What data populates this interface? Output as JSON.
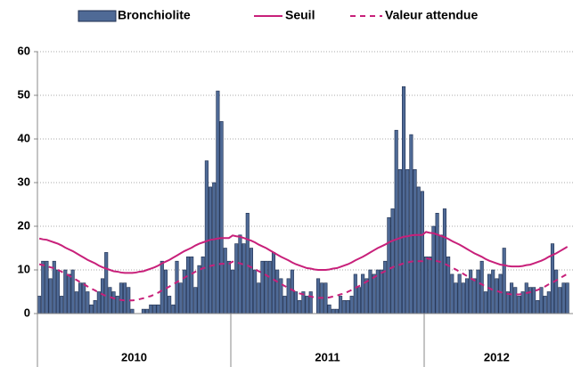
{
  "chart_data": {
    "type": "bar",
    "legend": "top",
    "grid": true,
    "ylim": [
      0,
      60
    ],
    "yticks": [
      0,
      10,
      20,
      30,
      40,
      50,
      60
    ],
    "year_labels": [
      "2010",
      "2011",
      "2012"
    ],
    "categories": [
      null,
      null,
      null,
      null,
      null,
      null,
      null,
      null,
      null,
      null,
      null,
      null,
      null,
      null,
      null,
      null,
      null,
      null,
      null,
      null,
      null,
      null,
      null,
      null,
      null,
      null,
      null,
      null,
      null,
      null,
      null,
      null,
      null,
      null,
      null,
      null,
      null,
      null,
      null,
      null,
      null,
      null,
      null,
      null,
      null,
      null,
      null,
      null,
      null,
      null,
      null,
      null,
      null,
      null,
      null,
      null,
      null,
      null,
      null,
      null,
      null,
      null,
      null,
      null,
      null,
      null,
      null,
      null,
      null,
      null,
      null,
      null,
      null,
      null,
      null,
      null,
      null,
      null,
      null,
      null,
      null,
      null,
      null,
      null,
      null,
      null,
      null,
      null,
      null,
      null,
      null,
      null,
      null,
      null,
      null,
      null,
      null,
      null,
      null,
      null,
      null,
      null,
      null,
      null,
      null,
      null,
      null,
      null,
      null,
      null,
      null,
      null,
      null,
      null,
      null,
      null,
      null,
      null,
      null,
      null,
      null,
      null,
      null,
      null,
      null,
      null,
      null,
      null,
      null,
      null,
      null,
      null,
      null,
      null,
      null,
      null,
      null,
      null,
      null,
      null,
      null,
      null,
      null
    ],
    "series": [
      {
        "name": "Bronchiolite",
        "type": "bar",
        "color": "#4f6a96",
        "values": [
          4,
          12,
          12,
          8,
          12,
          10,
          4,
          10,
          9,
          10,
          5,
          7,
          7,
          5,
          2,
          3,
          5,
          8,
          14,
          6,
          5,
          4,
          7,
          7,
          6,
          1,
          0,
          0,
          1,
          1,
          2,
          2,
          2,
          12,
          10,
          4,
          2,
          12,
          7,
          10,
          13,
          13,
          6,
          11,
          13,
          35,
          29,
          30,
          51,
          44,
          15,
          12,
          10,
          16,
          18,
          16,
          23,
          15,
          10,
          7,
          12,
          12,
          12,
          14,
          10,
          8,
          4,
          8,
          10,
          5,
          3,
          5,
          4,
          5,
          0,
          8,
          7,
          7,
          2,
          1,
          1,
          4,
          3,
          3,
          4,
          9,
          6,
          9,
          8,
          10,
          9,
          10,
          10,
          12,
          22,
          24,
          42,
          33,
          52,
          33,
          41,
          33,
          29,
          28,
          13,
          13,
          20,
          23,
          18,
          24,
          13,
          9,
          7,
          9,
          7,
          8,
          10,
          8,
          10,
          12,
          5,
          9,
          10,
          8,
          9,
          15,
          5,
          7,
          6,
          4,
          5,
          7,
          6,
          6,
          3,
          6,
          4,
          5,
          16,
          10,
          6,
          7,
          7
        ]
      },
      {
        "name": "Seuil",
        "type": "line",
        "color": "#c8207a",
        "dash": false,
        "values": [
          17.2,
          17.0,
          16.9,
          16.6,
          16.3,
          16.0,
          15.6,
          15.1,
          14.7,
          14.3,
          13.8,
          13.3,
          12.8,
          12.3,
          11.9,
          11.5,
          11.0,
          10.6,
          10.3,
          10.0,
          9.7,
          9.6,
          9.4,
          9.3,
          9.3,
          9.3,
          9.4,
          9.6,
          9.7,
          10.0,
          10.3,
          10.6,
          11.0,
          11.5,
          11.9,
          12.3,
          12.8,
          13.3,
          13.8,
          14.3,
          14.7,
          15.1,
          15.6,
          16.0,
          16.3,
          16.6,
          16.9,
          17.0,
          17.2,
          17.3,
          17.3,
          17.3,
          17.9,
          17.7,
          17.6,
          17.3,
          17.0,
          16.7,
          16.3,
          15.8,
          15.4,
          15.0,
          14.5,
          14.0,
          13.5,
          13.0,
          12.6,
          12.2,
          11.7,
          11.3,
          11.0,
          10.7,
          10.4,
          10.3,
          10.1,
          10.0,
          10.0,
          10.0,
          10.1,
          10.3,
          10.4,
          10.7,
          11.0,
          11.3,
          11.7,
          12.2,
          12.6,
          13.0,
          13.5,
          14.0,
          14.5,
          15.0,
          15.4,
          15.8,
          16.3,
          16.7,
          17.0,
          17.3,
          17.6,
          17.7,
          17.9,
          18.0,
          18.0,
          18.0,
          18.7,
          18.5,
          18.4,
          18.1,
          17.8,
          17.5,
          17.1,
          16.6,
          16.2,
          15.8,
          15.3,
          14.8,
          14.3,
          13.8,
          13.4,
          13.0,
          12.5,
          12.1,
          11.8,
          11.5,
          11.2,
          11.1,
          10.9,
          10.8,
          10.8,
          10.8,
          10.9,
          11.1,
          11.2,
          11.5,
          11.8,
          12.1,
          12.5,
          13.0,
          13.4,
          13.8,
          14.3,
          14.8,
          15.3
        ]
      },
      {
        "name": "Valeur attendue",
        "type": "line",
        "color": "#c8207a",
        "dash": true,
        "values": [
          11.3,
          11.1,
          10.9,
          10.6,
          10.4,
          10.0,
          9.6,
          9.1,
          8.7,
          8.2,
          7.7,
          7.2,
          6.7,
          6.2,
          5.7,
          5.3,
          4.8,
          4.4,
          4.0,
          3.8,
          3.5,
          3.3,
          3.1,
          3.0,
          3.0,
          3.0,
          3.1,
          3.3,
          3.5,
          3.8,
          4.0,
          4.4,
          4.8,
          5.3,
          5.7,
          6.2,
          6.7,
          7.2,
          7.7,
          8.2,
          8.7,
          9.1,
          9.6,
          10.0,
          10.4,
          10.6,
          10.9,
          11.1,
          11.3,
          11.4,
          11.4,
          11.4,
          11.9,
          11.7,
          11.5,
          11.2,
          11.0,
          10.6,
          10.2,
          9.7,
          9.3,
          8.8,
          8.3,
          7.8,
          7.3,
          6.8,
          6.3,
          5.9,
          5.4,
          5.0,
          4.6,
          4.4,
          4.1,
          3.9,
          3.7,
          3.6,
          3.6,
          3.6,
          3.7,
          3.9,
          4.1,
          4.4,
          4.6,
          5.0,
          5.4,
          5.9,
          6.3,
          6.8,
          7.3,
          7.8,
          8.3,
          8.8,
          9.3,
          9.7,
          10.2,
          10.6,
          11.0,
          11.2,
          11.5,
          11.7,
          11.9,
          12.0,
          12.0,
          12.0,
          12.7,
          12.5,
          12.3,
          12.0,
          11.8,
          11.4,
          11.0,
          10.5,
          10.1,
          9.6,
          9.1,
          8.6,
          8.1,
          7.6,
          7.1,
          6.7,
          6.2,
          5.8,
          5.4,
          5.2,
          4.9,
          4.7,
          4.5,
          4.4,
          4.4,
          4.4,
          4.5,
          4.7,
          4.9,
          5.2,
          5.4,
          5.8,
          6.2,
          6.7,
          7.1,
          7.6,
          8.1,
          8.6,
          9.1
        ]
      }
    ]
  }
}
